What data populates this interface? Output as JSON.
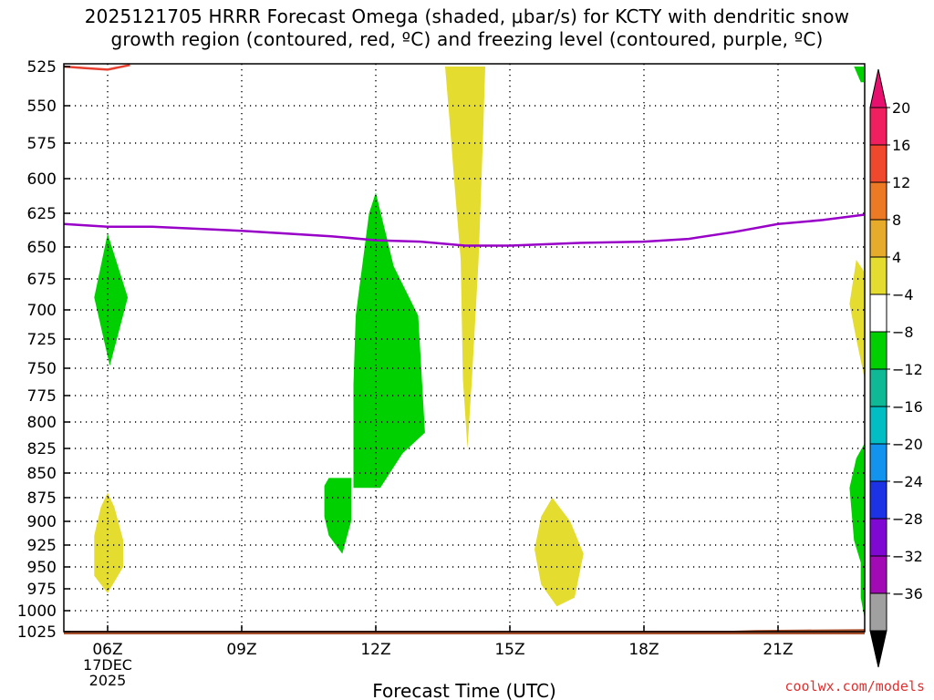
{
  "title_line1": "2025121705 HRRR Forecast Omega (shaded, μbar/s) for KCTY with dendritic snow",
  "title_line2": "growth region (contoured, red, ºC) and freezing level (contoured, purple, ºC)",
  "credit": "coolwx.com/models",
  "chart_data": {
    "type": "heatmap",
    "title": "2025121705 HRRR Forecast Omega (shaded, μbar/s) for KCTY with dendritic snow growth region (contoured, red, ºC) and freezing level (contoured, purple, ºC)",
    "xlabel": "Forecast Time (UTC)",
    "ylabel": "",
    "x_range_hours": [
      5,
      23
    ],
    "x_ticks": [
      {
        "h": 6,
        "label": "06Z",
        "sub1": "17DEC",
        "sub2": "2025"
      },
      {
        "h": 9,
        "label": "09Z"
      },
      {
        "h": 12,
        "label": "12Z"
      },
      {
        "h": 15,
        "label": "15Z"
      },
      {
        "h": 18,
        "label": "18Z"
      },
      {
        "h": 21,
        "label": "21Z"
      }
    ],
    "y_ticks": [
      525,
      550,
      575,
      600,
      625,
      650,
      675,
      700,
      725,
      750,
      775,
      800,
      825,
      850,
      875,
      900,
      925,
      950,
      975,
      1000,
      1025
    ],
    "y_range_hPa": [
      525,
      1025
    ],
    "grid": true,
    "colorbar": {
      "labels": [
        "20",
        "16",
        "12",
        "8",
        "4",
        "−4",
        "−8",
        "−12",
        "−16",
        "−20",
        "−24",
        "−28",
        "−32",
        "−36"
      ],
      "colors": [
        "#f02060",
        "#f0482c",
        "#ec7a24",
        "#e6ab2a",
        "#e4dc2f",
        "#ffffff",
        "#00cf00",
        "#10b996",
        "#00bec4",
        "#1294ee",
        "#1b32e5",
        "#7f08d3",
        "#a10ab4",
        "#a0a0a0"
      ],
      "top_arrow_color": "#e8106e",
      "bottom_arrow_color": "#000000"
    },
    "shaded_regions": [
      {
        "name": "omega-pos-06z",
        "color": "#e4dc2f",
        "points": [
          [
            6.0,
            870
          ],
          [
            6.15,
            885
          ],
          [
            6.35,
            920
          ],
          [
            6.35,
            950
          ],
          [
            6.0,
            980
          ],
          [
            5.7,
            960
          ],
          [
            5.7,
            915
          ],
          [
            5.85,
            885
          ]
        ]
      },
      {
        "name": "omega-neg-06z",
        "color": "#00cf00",
        "points": [
          [
            6.0,
            640
          ],
          [
            6.45,
            690
          ],
          [
            6.05,
            748
          ],
          [
            5.7,
            690
          ]
        ]
      },
      {
        "name": "omega-neg-11z",
        "color": "#00cf00",
        "points": [
          [
            10.85,
            863
          ],
          [
            10.95,
            855
          ],
          [
            11.45,
            855
          ],
          [
            11.45,
            900
          ],
          [
            11.25,
            935
          ],
          [
            10.95,
            915
          ],
          [
            10.85,
            895
          ]
        ]
      },
      {
        "name": "omega-neg-12z",
        "color": "#00cf00",
        "points": [
          [
            12.0,
            610
          ],
          [
            12.4,
            665
          ],
          [
            12.95,
            705
          ],
          [
            13.1,
            810
          ],
          [
            12.6,
            830
          ],
          [
            12.1,
            865
          ],
          [
            11.5,
            865
          ],
          [
            11.5,
            765
          ],
          [
            11.55,
            705
          ],
          [
            11.75,
            650
          ],
          [
            11.85,
            625
          ]
        ]
      },
      {
        "name": "omega-pos-14z",
        "color": "#e4dc2f",
        "points": [
          [
            13.55,
            525
          ],
          [
            14.45,
            525
          ],
          [
            14.4,
            570
          ],
          [
            14.3,
            660
          ],
          [
            14.15,
            760
          ],
          [
            14.05,
            825
          ],
          [
            13.95,
            760
          ],
          [
            13.9,
            660
          ],
          [
            13.75,
            600
          ],
          [
            13.65,
            560
          ]
        ]
      },
      {
        "name": "omega-pos-16z",
        "color": "#e4dc2f",
        "points": [
          [
            15.95,
            875
          ],
          [
            16.35,
            900
          ],
          [
            16.65,
            935
          ],
          [
            16.45,
            985
          ],
          [
            16.05,
            995
          ],
          [
            15.7,
            970
          ],
          [
            15.55,
            930
          ],
          [
            15.7,
            895
          ]
        ]
      },
      {
        "name": "omega-pos-23z-mid",
        "color": "#e4dc2f",
        "points": [
          [
            23.0,
            670
          ],
          [
            23.0,
            760
          ],
          [
            22.75,
            725
          ],
          [
            22.6,
            695
          ],
          [
            22.75,
            660
          ]
        ]
      },
      {
        "name": "omega-neg-23z-low",
        "color": "#00cf00",
        "points": [
          [
            23.0,
            820
          ],
          [
            23.0,
            1010
          ],
          [
            22.85,
            985
          ],
          [
            22.85,
            945
          ],
          [
            22.7,
            920
          ],
          [
            22.6,
            865
          ],
          [
            22.75,
            835
          ]
        ]
      },
      {
        "name": "omega-cyan-23z",
        "color": "#10b996",
        "points": [
          [
            23.0,
            850
          ],
          [
            23.0,
            895
          ],
          [
            22.95,
            880
          ],
          [
            22.95,
            860
          ]
        ]
      },
      {
        "name": "omega-neg-23z-top",
        "color": "#00cf00",
        "points": [
          [
            22.7,
            525
          ],
          [
            23.0,
            525
          ],
          [
            23.0,
            535
          ],
          [
            22.85,
            535
          ]
        ]
      }
    ],
    "freezing_level": {
      "color": "#9800c8",
      "points": [
        [
          5.0,
          633
        ],
        [
          6.0,
          635
        ],
        [
          7.0,
          635
        ],
        [
          9.0,
          638
        ],
        [
          11.0,
          642
        ],
        [
          12.0,
          645
        ],
        [
          13.0,
          646
        ],
        [
          14.0,
          649
        ],
        [
          15.0,
          649
        ],
        [
          16.5,
          647
        ],
        [
          18.0,
          646
        ],
        [
          19.0,
          644
        ],
        [
          20.0,
          639
        ],
        [
          21.0,
          633
        ],
        [
          22.0,
          630
        ],
        [
          23.0,
          626
        ]
      ]
    },
    "dendritic_growth_region": {
      "color": "#e84030",
      "points": [
        [
          5.0,
          525
        ],
        [
          5.5,
          526
        ],
        [
          6.0,
          527
        ],
        [
          6.5,
          524
        ]
      ]
    },
    "terrain": {
      "color": "#a8502c",
      "points": [
        [
          5.0,
          1025
        ],
        [
          8.0,
          1025
        ],
        [
          8.5,
          1027
        ],
        [
          17.2,
          1027
        ],
        [
          17.4,
          1025
        ],
        [
          20.0,
          1025
        ],
        [
          20.5,
          1023
        ],
        [
          23.0,
          1022
        ]
      ]
    }
  }
}
